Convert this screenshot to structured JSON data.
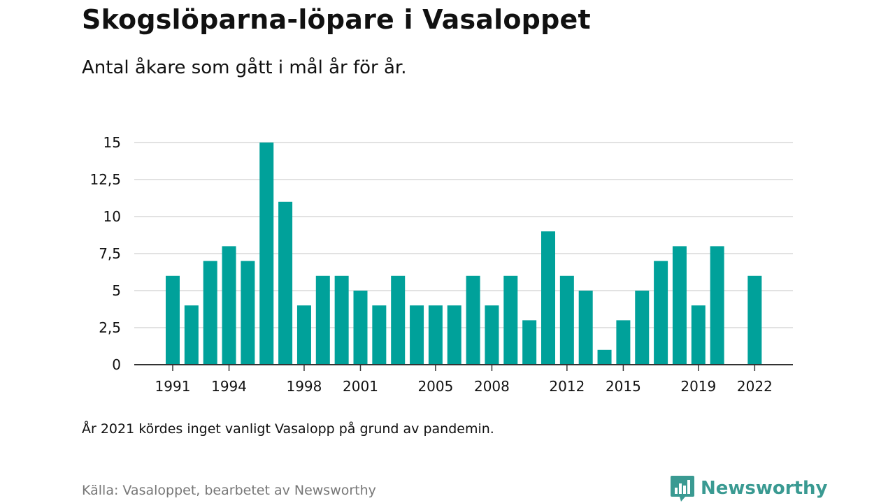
{
  "header": {
    "title": "Skogslöparna-löpare i Vasaloppet",
    "subtitle": "Antal åkare som gått i mål år för år."
  },
  "footer": {
    "note": "År 2021 kördes inget vanligt Vasalopp på grund av pandemin.",
    "source": "Källa: Vasaloppet, bearbetet av Newsworthy",
    "brand": "Newsworthy"
  },
  "colors": {
    "bar": "#00a19a",
    "grid": "#d9d9d9",
    "axis": "#333333",
    "brand": "#3a9a92"
  },
  "chart_data": {
    "type": "bar",
    "title": "Skogslöparna-löpare i Vasaloppet",
    "subtitle": "Antal åkare som gått i mål år för år.",
    "xlabel": "",
    "ylabel": "",
    "ylim": [
      0,
      15
    ],
    "grid": true,
    "y_ticks": [
      {
        "value": 0,
        "label": "0"
      },
      {
        "value": 2.5,
        "label": "2,5"
      },
      {
        "value": 5,
        "label": "5"
      },
      {
        "value": 7.5,
        "label": "7,5"
      },
      {
        "value": 10,
        "label": "10"
      },
      {
        "value": 12.5,
        "label": "12,5"
      },
      {
        "value": 15,
        "label": "15"
      }
    ],
    "x_ticks": [
      1991,
      1994,
      1998,
      2001,
      2005,
      2008,
      2012,
      2015,
      2019,
      2022
    ],
    "x": [
      1991,
      1992,
      1993,
      1994,
      1995,
      1996,
      1997,
      1998,
      1999,
      2000,
      2001,
      2002,
      2003,
      2004,
      2005,
      2006,
      2007,
      2008,
      2009,
      2010,
      2011,
      2012,
      2013,
      2014,
      2015,
      2016,
      2017,
      2018,
      2019,
      2020,
      2022
    ],
    "values": [
      6,
      4,
      7,
      8,
      7,
      15,
      11,
      4,
      6,
      6,
      5,
      4,
      6,
      4,
      4,
      4,
      6,
      4,
      6,
      3,
      9,
      6,
      5,
      1,
      3,
      5,
      7,
      8,
      4,
      8,
      6
    ]
  }
}
